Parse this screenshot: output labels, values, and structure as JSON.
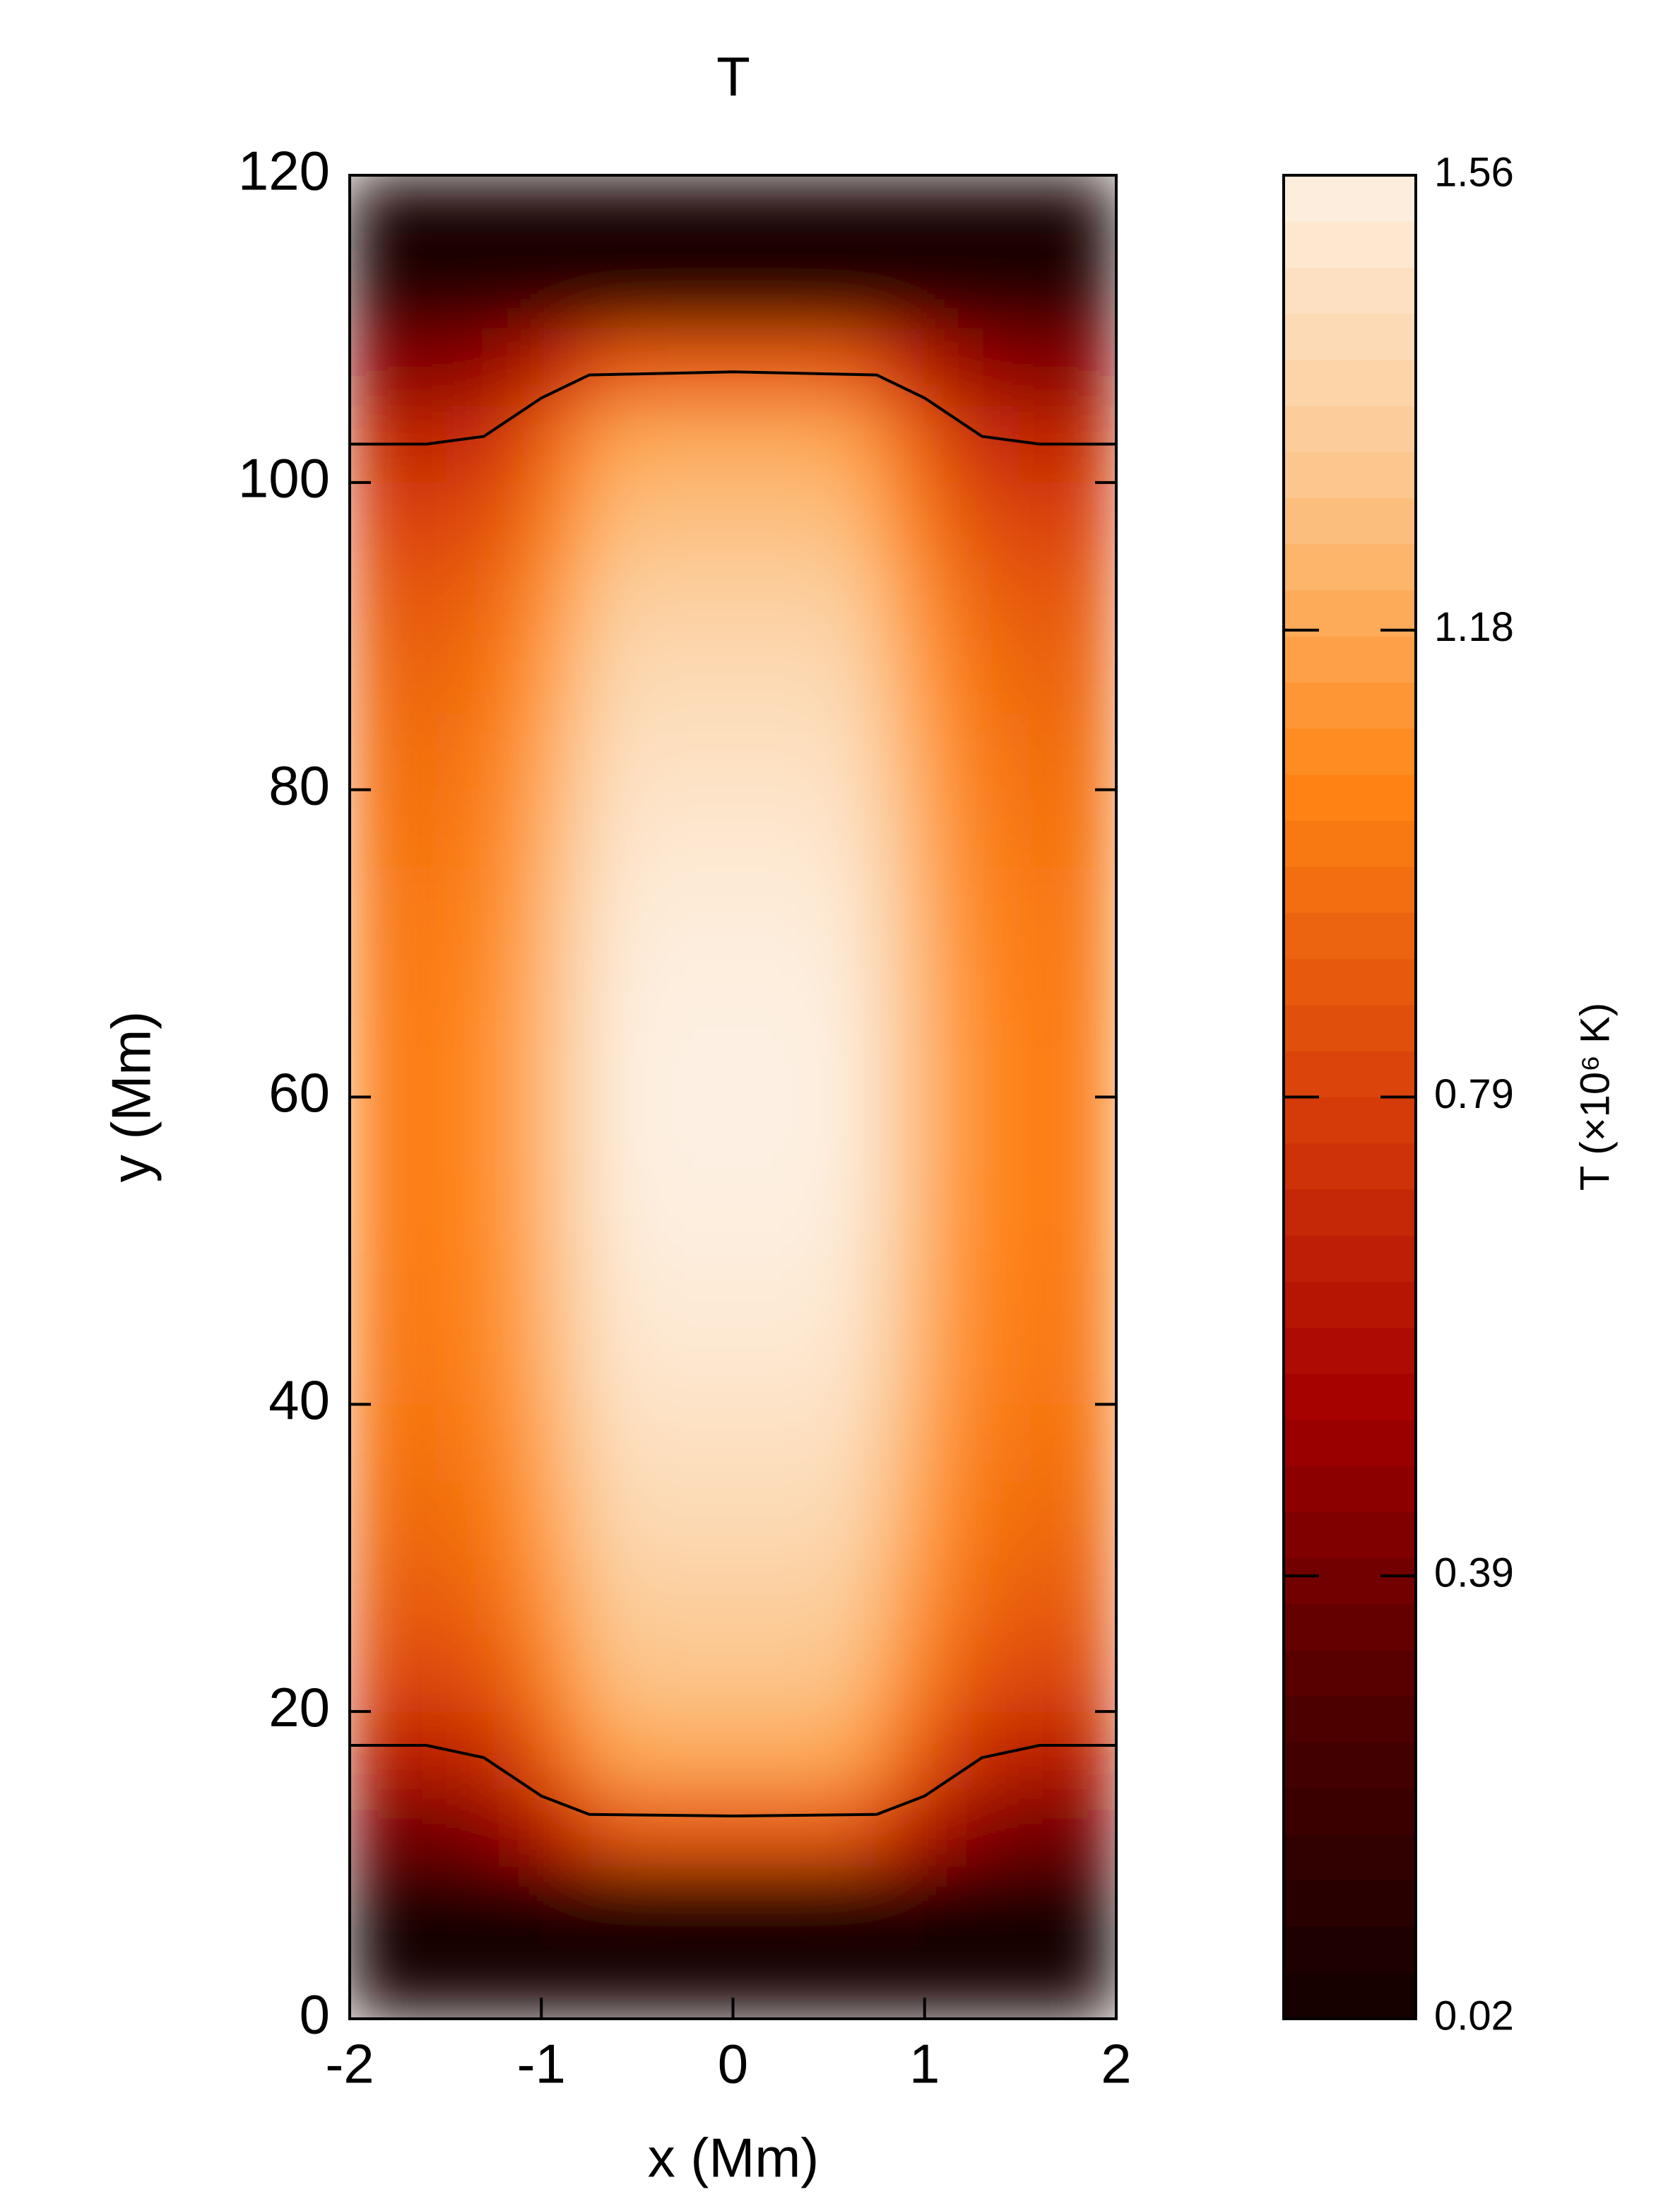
{
  "chart_data": {
    "type": "heatmap",
    "title": "T",
    "x_label": "x (Mm)",
    "y_label": "y (Mm)",
    "xlim": [
      -2,
      2
    ],
    "xticks": [
      -2,
      -1,
      0,
      1,
      2
    ],
    "ylim": [
      0,
      120
    ],
    "yticks": [
      0,
      20,
      40,
      60,
      80,
      100,
      120
    ],
    "x": [
      -1.875,
      -1.625,
      -1.375,
      -1.125,
      -0.875,
      -0.625,
      -0.375,
      -0.125,
      0.125,
      0.375,
      0.625,
      0.875,
      1.125,
      1.375,
      1.625,
      1.875
    ],
    "y": [
      2.5,
      7.5,
      12.5,
      17.5,
      22.5,
      27.5,
      32.5,
      37.5,
      42.5,
      47.5,
      52.5,
      57.5,
      62.5,
      67.5,
      72.5,
      77.5,
      82.5,
      87.5,
      92.5,
      97.5,
      102.5,
      107.5,
      112.5,
      117.5
    ],
    "z": [
      [
        0.03,
        0.03,
        0.03,
        0.03,
        0.04,
        0.04,
        0.04,
        0.04,
        0.04,
        0.04,
        0.04,
        0.04,
        0.03,
        0.03,
        0.03,
        0.03
      ],
      [
        0.05,
        0.05,
        0.05,
        0.05,
        0.06,
        0.06,
        0.06,
        0.06,
        0.06,
        0.06,
        0.06,
        0.06,
        0.05,
        0.05,
        0.05,
        0.05
      ],
      [
        0.4,
        0.4,
        0.43,
        0.53,
        0.7,
        0.88,
        0.9,
        0.9,
        0.9,
        0.9,
        0.88,
        0.7,
        0.53,
        0.43,
        0.4,
        0.4
      ],
      [
        0.65,
        0.65,
        0.68,
        0.79,
        0.98,
        1.17,
        1.2,
        1.2,
        1.2,
        1.2,
        1.17,
        0.98,
        0.79,
        0.68,
        0.65,
        0.65
      ],
      [
        0.82,
        0.82,
        0.84,
        0.94,
        1.11,
        1.28,
        1.3,
        1.3,
        1.3,
        1.3,
        1.28,
        1.11,
        0.94,
        0.84,
        0.82,
        0.82
      ],
      [
        0.9,
        0.9,
        0.92,
        1.02,
        1.18,
        1.34,
        1.36,
        1.36,
        1.36,
        1.36,
        1.34,
        1.18,
        1.02,
        0.92,
        0.9,
        0.9
      ],
      [
        0.95,
        0.95,
        0.97,
        1.07,
        1.23,
        1.4,
        1.42,
        1.42,
        1.42,
        1.42,
        1.4,
        1.23,
        1.07,
        0.97,
        0.95,
        0.95
      ],
      [
        0.98,
        0.98,
        1.0,
        1.1,
        1.27,
        1.44,
        1.46,
        1.46,
        1.46,
        1.46,
        1.44,
        1.27,
        1.1,
        1.0,
        0.98,
        0.98
      ],
      [
        1.0,
        1.0,
        1.03,
        1.13,
        1.3,
        1.48,
        1.5,
        1.5,
        1.5,
        1.5,
        1.48,
        1.3,
        1.13,
        1.03,
        1.0,
        1.0
      ],
      [
        1.01,
        1.01,
        1.04,
        1.14,
        1.32,
        1.5,
        1.53,
        1.53,
        1.53,
        1.53,
        1.5,
        1.32,
        1.14,
        1.04,
        1.01,
        1.01
      ],
      [
        1.02,
        1.02,
        1.05,
        1.15,
        1.34,
        1.52,
        1.55,
        1.55,
        1.55,
        1.55,
        1.52,
        1.34,
        1.15,
        1.05,
        1.02,
        1.02
      ],
      [
        1.02,
        1.02,
        1.05,
        1.16,
        1.34,
        1.53,
        1.56,
        1.56,
        1.56,
        1.56,
        1.53,
        1.34,
        1.16,
        1.05,
        1.02,
        1.02
      ],
      [
        1.02,
        1.02,
        1.05,
        1.16,
        1.34,
        1.53,
        1.56,
        1.56,
        1.56,
        1.56,
        1.53,
        1.34,
        1.16,
        1.05,
        1.02,
        1.02
      ],
      [
        1.01,
        1.01,
        1.04,
        1.15,
        1.33,
        1.52,
        1.55,
        1.55,
        1.55,
        1.55,
        1.52,
        1.33,
        1.15,
        1.04,
        1.01,
        1.01
      ],
      [
        1.0,
        1.0,
        1.03,
        1.13,
        1.32,
        1.5,
        1.53,
        1.53,
        1.53,
        1.53,
        1.5,
        1.32,
        1.13,
        1.03,
        1.0,
        1.0
      ],
      [
        0.98,
        0.98,
        1.01,
        1.11,
        1.29,
        1.47,
        1.5,
        1.5,
        1.5,
        1.5,
        1.47,
        1.29,
        1.11,
        1.01,
        0.98,
        0.98
      ],
      [
        0.96,
        0.96,
        0.99,
        1.09,
        1.26,
        1.44,
        1.46,
        1.46,
        1.46,
        1.46,
        1.44,
        1.26,
        1.09,
        0.99,
        0.96,
        0.96
      ],
      [
        0.93,
        0.93,
        0.95,
        1.05,
        1.22,
        1.4,
        1.42,
        1.42,
        1.42,
        1.42,
        1.4,
        1.22,
        1.05,
        0.95,
        0.93,
        0.93
      ],
      [
        0.88,
        0.88,
        0.9,
        1.0,
        1.17,
        1.34,
        1.36,
        1.36,
        1.36,
        1.36,
        1.34,
        1.17,
        1.0,
        0.9,
        0.88,
        0.88
      ],
      [
        0.8,
        0.8,
        0.82,
        0.92,
        1.09,
        1.26,
        1.28,
        1.28,
        1.28,
        1.28,
        1.26,
        1.09,
        0.92,
        0.82,
        0.8,
        0.8
      ],
      [
        0.68,
        0.68,
        0.71,
        0.81,
        0.99,
        1.17,
        1.2,
        1.2,
        1.2,
        1.2,
        1.17,
        0.99,
        0.81,
        0.71,
        0.68,
        0.68
      ],
      [
        0.45,
        0.45,
        0.47,
        0.56,
        0.72,
        0.88,
        0.9,
        0.9,
        0.9,
        0.9,
        0.88,
        0.72,
        0.56,
        0.47,
        0.45,
        0.45
      ],
      [
        0.08,
        0.08,
        0.08,
        0.08,
        0.08,
        0.08,
        0.08,
        0.08,
        0.08,
        0.08,
        0.08,
        0.08,
        0.08,
        0.08,
        0.08,
        0.08
      ],
      [
        0.04,
        0.04,
        0.04,
        0.04,
        0.04,
        0.04,
        0.04,
        0.04,
        0.04,
        0.04,
        0.04,
        0.04,
        0.04,
        0.04,
        0.04,
        0.04
      ]
    ],
    "colormap": [
      "#120000",
      "#4d0000",
      "#a50000",
      "#d8400a",
      "#ff8414",
      "#fcc68c",
      "#fdf0e2"
    ],
    "colorbar": {
      "label": "T (×10⁶ K)",
      "clim": [
        0.02,
        1.56
      ],
      "ticks": [
        0.02,
        0.39,
        0.79,
        1.18,
        1.56
      ]
    },
    "contours": [
      {
        "x": [
          -2,
          -1.6,
          -1.3,
          -1.0,
          -0.75,
          0,
          0.75,
          1.0,
          1.3,
          1.6,
          2
        ],
        "y": [
          102.5,
          102.5,
          103,
          105.5,
          107,
          107.2,
          107,
          105.5,
          103,
          102.5,
          102.5
        ]
      },
      {
        "x": [
          -2,
          -1.6,
          -1.3,
          -1.0,
          -0.75,
          0,
          0.75,
          1.0,
          1.3,
          1.6,
          2
        ],
        "y": [
          17.8,
          17.8,
          17,
          14.5,
          13.3,
          13.2,
          13.3,
          14.5,
          17,
          17.8,
          17.8
        ]
      }
    ]
  }
}
